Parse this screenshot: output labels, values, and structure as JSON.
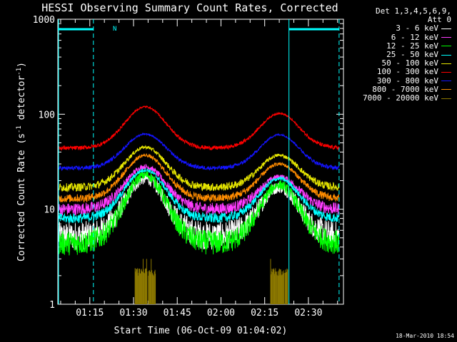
{
  "chart_data": {
    "type": "line",
    "title": "HESSI Observing Summary Count Rates, Corrected",
    "xlabel": "Start Time (06-Oct-09 01:04:02)",
    "ylabel_main": "Corrected Count Rate (s",
    "ylabel_sup1": "-1",
    "ylabel_mid": " detector",
    "ylabel_sup2": "-1",
    "ylabel_end": ")",
    "x_range_minutes": [
      0,
      98
    ],
    "x_ticks": [
      {
        "label": "01:15",
        "min": 10.97
      },
      {
        "label": "01:30",
        "min": 25.97
      },
      {
        "label": "01:45",
        "min": 40.97
      },
      {
        "label": "02:00",
        "min": 55.97
      },
      {
        "label": "02:15",
        "min": 70.97
      },
      {
        "label": "02:30",
        "min": 85.97
      }
    ],
    "y_scale": "log",
    "ylim": [
      1,
      1000
    ],
    "y_tick_labels": [
      "1",
      "10",
      "100",
      "1000"
    ],
    "legend_header_1": "Det 1,3,4,5,6,9,",
    "legend_header_2": "Att 0",
    "night_marker": "N",
    "series": [
      {
        "name": "3 - 6 keV",
        "color": "#ffffff",
        "base": 5.2,
        "peak1": 21,
        "peak2": 17,
        "noise": 0.35
      },
      {
        "name": "6 - 12 keV",
        "color": "#ff3cff",
        "base": 10,
        "peak1": 28,
        "peak2": 22,
        "noise": 0.15
      },
      {
        "name": "12 - 25 keV",
        "color": "#00ff00",
        "base": 4.4,
        "peak1": 23,
        "peak2": 18,
        "noise": 0.3
      },
      {
        "name": "25 - 50 keV",
        "color": "#00ffff",
        "base": 8.0,
        "peak1": 26,
        "peak2": 21,
        "noise": 0.12
      },
      {
        "name": "50 - 100 keV",
        "color": "#e6e600",
        "base": 17,
        "peak1": 45,
        "peak2": 37,
        "noise": 0.1
      },
      {
        "name": "100 - 300 keV",
        "color": "#ff0000",
        "base": 44,
        "peak1": 120,
        "peak2": 102,
        "noise": 0.05
      },
      {
        "name": "300 - 800 keV",
        "color": "#1414ff",
        "base": 27,
        "peak1": 62,
        "peak2": 61,
        "noise": 0.05
      },
      {
        "name": "800 - 7000 keV",
        "color": "#ff8c00",
        "base": 13,
        "peak1": 37,
        "peak2": 30,
        "noise": 0.1
      },
      {
        "name": "7000 - 20000 keV",
        "color": "#8c7800",
        "base": 1,
        "peak1": 2.4,
        "peak2": 2.2,
        "noise": 0.2
      }
    ],
    "saa_marks_minutes": [
      {
        "from": 0,
        "to": 12.2,
        "dash_at": 12.2
      },
      {
        "from": 79.3,
        "to": 96.5,
        "dash_at": 96.5
      }
    ],
    "peak_times_minutes": [
      30,
      76
    ],
    "grid": false,
    "legend_position": "right"
  },
  "timestamp": "18-Mar-2010 18:54"
}
